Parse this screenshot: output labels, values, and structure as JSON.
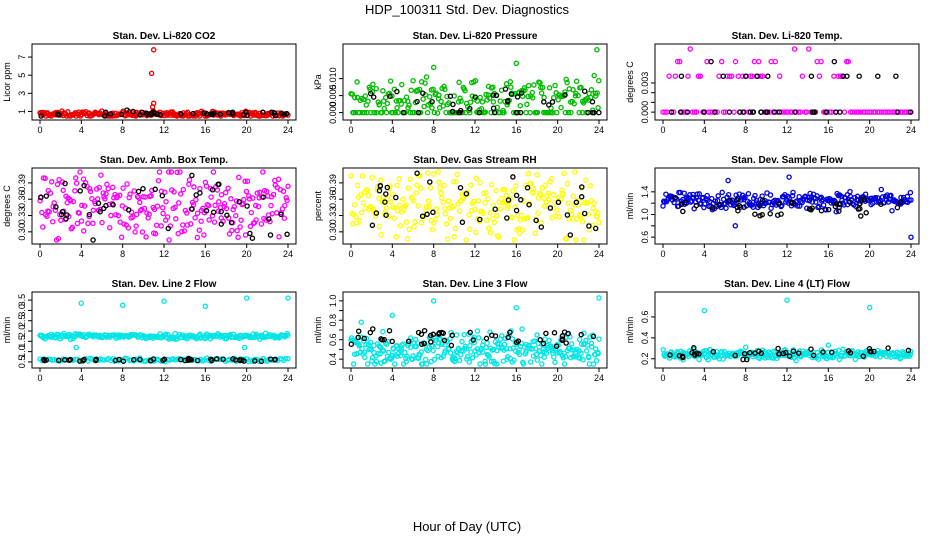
{
  "figure": {
    "title": "HDP_100311  Std. Dev. Diagnostics",
    "xlabel": "Hour of Day (UTC)"
  },
  "colors": {
    "axis": "#000000",
    "background": "#ffffff",
    "ref_series": "#000000"
  },
  "chart_data": [
    {
      "type": "scatter",
      "title": "Stan. Dev. Li-820 CO2",
      "ylabel": "Licor ppm",
      "xlim": [
        0,
        24
      ],
      "ylim": [
        0.5,
        8
      ],
      "xticks": [
        0,
        4,
        8,
        12,
        16,
        20,
        24
      ],
      "yticks": [
        1,
        3,
        5,
        7
      ],
      "ytick_labels": [
        "1",
        "3",
        "5",
        "7"
      ],
      "color": "#ee0000",
      "series": [
        {
          "name": "main",
          "base": 0.7,
          "spread": 0.15,
          "count": 260,
          "spikes": [
            {
              "x": 11.0,
              "y": 7.8
            },
            {
              "x": 10.8,
              "y": 5.2
            },
            {
              "x": 11.0,
              "y": 1.9
            },
            {
              "x": 10.9,
              "y": 1.5
            }
          ]
        },
        {
          "name": "ref",
          "base": 0.75,
          "spread": 0.15,
          "count": 40
        }
      ]
    },
    {
      "type": "scatter",
      "title": "Stan. Dev. Li-820 Pressure",
      "ylabel": "kPa",
      "xlim": [
        0,
        24
      ],
      "ylim": [
        -0.001,
        0.019
      ],
      "xticks": [
        0,
        4,
        8,
        12,
        16,
        20,
        24
      ],
      "yticks": [
        0.0,
        0.005,
        0.01
      ],
      "ytick_labels": [
        "0.000",
        "0.005",
        "0.010"
      ],
      "color": "#00bb00",
      "series": [
        {
          "name": "main",
          "base": 0.005,
          "spread": 0.0024,
          "count": 260,
          "zero_frac": 0.3,
          "spikes": [
            {
              "x": 8.0,
              "y": 0.0133
            },
            {
              "x": 16.0,
              "y": 0.0145
            },
            {
              "x": 23.8,
              "y": 0.0185
            }
          ]
        },
        {
          "name": "ref",
          "base": 0.0045,
          "spread": 0.002,
          "count": 40,
          "zero_frac": 0.4
        }
      ]
    },
    {
      "type": "scatter",
      "title": "Stan. Dev. Li-820 Temp.",
      "ylabel": "degrees C",
      "xlim": [
        0,
        24
      ],
      "ylim": [
        -0.0004,
        0.0066
      ],
      "xticks": [
        0,
        4,
        8,
        12,
        16,
        20,
        24
      ],
      "yticks": [
        0.0,
        0.001,
        0.002,
        0.003
      ],
      "ytick_labels": [
        "0.000",
        "",
        "",
        "0.003"
      ],
      "color": "#ff00ff",
      "series": [
        {
          "name": "main",
          "levels": [
            0,
            0.0037,
            0.0052,
            0.0065
          ],
          "level_weights": [
            0.6,
            0.28,
            0.09,
            0.03
          ],
          "count": 120,
          "spikes": []
        },
        {
          "name": "ref",
          "levels": [
            0,
            0.0037,
            0.0052
          ],
          "level_weights": [
            0.8,
            0.14,
            0.06
          ],
          "count": 40
        }
      ]
    },
    {
      "type": "scatter",
      "title": "Stan. Dev. Amb. Box Temp.",
      "ylabel": "degrees C",
      "xlim": [
        0,
        24
      ],
      "ylim": [
        0.285,
        0.41
      ],
      "xticks": [
        0,
        4,
        8,
        12,
        16,
        20,
        24
      ],
      "yticks": [
        0.3,
        0.33,
        0.36,
        0.39
      ],
      "ytick_labels": [
        "0.30",
        "0.33",
        "0.36",
        "0.39"
      ],
      "color": "#ff00ff",
      "series": [
        {
          "name": "main",
          "base": 0.35,
          "spread": 0.03,
          "count": 260
        },
        {
          "name": "ref",
          "base": 0.345,
          "spread": 0.028,
          "count": 45
        }
      ]
    },
    {
      "type": "scatter",
      "title": "Stan. Dev. Gas Stream RH",
      "ylabel": "percent",
      "xlim": [
        0,
        24
      ],
      "ylim": [
        0.285,
        0.41
      ],
      "xticks": [
        0,
        4,
        8,
        12,
        16,
        20,
        24
      ],
      "yticks": [
        0.3,
        0.33,
        0.36,
        0.39
      ],
      "ytick_labels": [
        "0.30",
        "0.33",
        "0.36",
        "0.39"
      ],
      "color": "#ffff00",
      "series": [
        {
          "name": "main",
          "base": 0.35,
          "spread": 0.03,
          "count": 260
        },
        {
          "name": "ref",
          "base": 0.35,
          "spread": 0.025,
          "count": 40
        }
      ]
    },
    {
      "type": "scatter",
      "title": "Stan. Dev. Sample Flow",
      "ylabel": "ml/min",
      "xlim": [
        0,
        24
      ],
      "ylim": [
        0.55,
        1.75
      ],
      "xticks": [
        0,
        4,
        8,
        12,
        16,
        20,
        24
      ],
      "yticks": [
        0.6,
        0.8,
        1.0,
        1.2,
        1.4
      ],
      "ytick_labels": [
        "0.6",
        "",
        "1.0",
        "",
        "1.4"
      ],
      "color": "#0000dd",
      "series": [
        {
          "name": "main",
          "base": 1.25,
          "spread": 0.07,
          "count": 260,
          "spikes": [
            {
              "x": 24.0,
              "y": 0.6
            },
            {
              "x": 12.2,
              "y": 1.66
            },
            {
              "x": 6.3,
              "y": 1.6
            },
            {
              "x": 7.0,
              "y": 0.8
            }
          ]
        },
        {
          "name": "ref",
          "base": 1.12,
          "spread": 0.08,
          "count": 45
        }
      ]
    },
    {
      "type": "scatter",
      "title": "Stan. Dev. Line 2 Flow",
      "ylabel": "ml/min",
      "xlim": [
        0,
        24
      ],
      "ylim": [
        0.4,
        3.7
      ],
      "xticks": [
        0,
        4,
        8,
        12,
        16,
        20,
        24
      ],
      "yticks": [
        0.5,
        1.0,
        1.5,
        2.0,
        2.5,
        3.0,
        3.5
      ],
      "ytick_labels": [
        "0.5",
        "1.0",
        "1.5",
        "2.0",
        "2.5",
        "3.0",
        "3.5"
      ],
      "color": "#00e5e5",
      "series": [
        {
          "name": "main",
          "base": 1.75,
          "spread": 0.07,
          "count": 220,
          "spikes": [
            {
              "x": 4.0,
              "y": 3.35
            },
            {
              "x": 8.0,
              "y": 3.25
            },
            {
              "x": 12.0,
              "y": 3.45
            },
            {
              "x": 16.0,
              "y": 3.2
            },
            {
              "x": 20.0,
              "y": 3.6
            },
            {
              "x": 24.0,
              "y": 3.6
            },
            {
              "x": 3.5,
              "y": 1.2
            },
            {
              "x": 19.8,
              "y": 1.2
            }
          ]
        },
        {
          "name": "low",
          "base": 0.6,
          "spread": 0.04,
          "count": 120
        },
        {
          "name": "ref",
          "base": 0.6,
          "spread": 0.04,
          "count": 45
        }
      ]
    },
    {
      "type": "scatter",
      "title": "Stan. Dev. Line 3 Flow",
      "ylabel": "ml/min",
      "xlim": [
        0,
        24
      ],
      "ylim": [
        0.35,
        1.05
      ],
      "xticks": [
        0,
        4,
        8,
        12,
        16,
        20,
        24
      ],
      "yticks": [
        0.4,
        0.5,
        0.6,
        0.7,
        0.8,
        0.9,
        1.0
      ],
      "ytick_labels": [
        "0.4",
        "",
        "0.6",
        "",
        "0.8",
        "",
        "1.0"
      ],
      "color": "#00e5e5",
      "series": [
        {
          "name": "main",
          "base": 0.5,
          "spread": 0.09,
          "count": 320,
          "spikes": [
            {
              "x": 8.0,
              "y": 1.0
            },
            {
              "x": 24.0,
              "y": 1.03
            },
            {
              "x": 16.0,
              "y": 0.93
            },
            {
              "x": 4.0,
              "y": 0.85
            },
            {
              "x": 1.0,
              "y": 0.78
            }
          ]
        },
        {
          "name": "ref",
          "base": 0.63,
          "spread": 0.05,
          "count": 50
        }
      ]
    },
    {
      "type": "scatter",
      "title": "Stan. Dev. Line 4 (LT) Flow",
      "ylabel": "ml/min",
      "xlim": [
        0,
        24
      ],
      "ylim": [
        0.15,
        0.8
      ],
      "xticks": [
        0,
        4,
        8,
        12,
        16,
        20,
        24
      ],
      "yticks": [
        0.2,
        0.4,
        0.6
      ],
      "ytick_labels": [
        "0.2",
        "0.4",
        "0.6"
      ],
      "color": "#00e5e5",
      "series": [
        {
          "name": "main",
          "base": 0.24,
          "spread": 0.022,
          "count": 260,
          "spikes": [
            {
              "x": 4.0,
              "y": 0.66
            },
            {
              "x": 12.0,
              "y": 0.76
            },
            {
              "x": 20.0,
              "y": 0.69
            },
            {
              "x": 16.0,
              "y": 0.33
            },
            {
              "x": 8.0,
              "y": 0.31
            }
          ]
        },
        {
          "name": "ref",
          "base": 0.25,
          "spread": 0.025,
          "count": 40
        }
      ]
    }
  ]
}
